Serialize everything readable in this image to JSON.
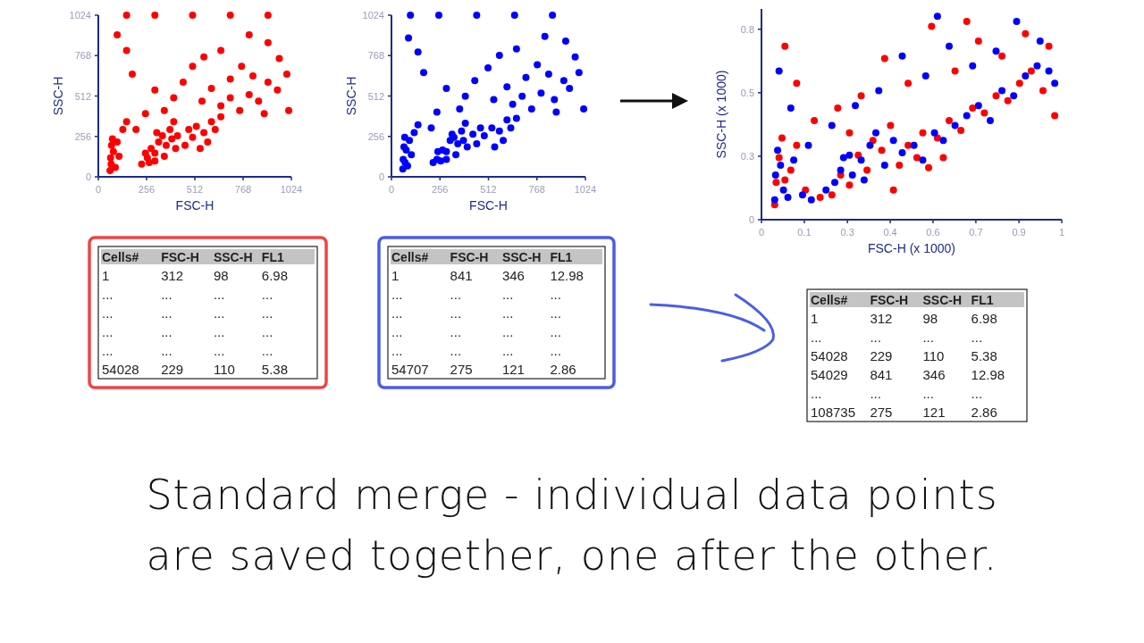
{
  "chart_data": [
    {
      "type": "scatter",
      "xlabel": "FSC-H",
      "ylabel": "SSC-H",
      "xlim": [
        0,
        1024
      ],
      "ylim": [
        0,
        1024
      ],
      "xticks": [
        0,
        256,
        512,
        768,
        1024
      ],
      "yticks": [
        0,
        256,
        512,
        768,
        1024
      ],
      "marker": "circle",
      "grid": false,
      "series": [
        {
          "color": "#ff0000",
          "x": [
            62,
            65,
            70,
            75,
            68,
            80,
            90,
            100,
            110,
            130,
            150,
            230,
            260,
            280,
            300,
            320,
            340,
            360,
            380,
            400,
            300,
            270,
            350,
            410,
            420,
            390,
            250,
            310,
            460,
            500,
            520,
            560,
            600,
            620,
            540,
            480,
            580,
            650,
            650,
            700,
            750,
            800,
            850,
            900,
            950,
            1000,
            1010,
            880,
            820,
            760,
            700,
            600,
            550,
            500,
            450,
            400,
            350,
            300,
            250,
            200,
            180,
            150,
            100,
            900,
            960,
            800,
            650,
            560,
            150,
            300,
            500,
            700,
            900
          ],
          "values": [
            40,
            120,
            200,
            240,
            80,
            160,
            60,
            220,
            130,
            300,
            350,
            80,
            120,
            180,
            150,
            220,
            260,
            200,
            300,
            350,
            100,
            90,
            130,
            180,
            260,
            240,
            150,
            280,
            200,
            250,
            320,
            280,
            350,
            300,
            180,
            300,
            220,
            380,
            450,
            500,
            420,
            520,
            480,
            600,
            550,
            650,
            420,
            400,
            640,
            700,
            620,
            560,
            480,
            700,
            600,
            500,
            420,
            550,
            400,
            300,
            650,
            800,
            900,
            850,
            750,
            900,
            800,
            760,
            1024,
            1024,
            1024,
            1024,
            1024
          ]
        }
      ]
    },
    {
      "type": "scatter",
      "xlabel": "FSC-H",
      "ylabel": "SSC-H",
      "xlim": [
        0,
        1024
      ],
      "ylim": [
        0,
        1024
      ],
      "xticks": [
        0,
        256,
        512,
        768,
        1024
      ],
      "yticks": [
        0,
        256,
        512,
        768,
        1024
      ],
      "marker": "circle",
      "grid": false,
      "series": [
        {
          "color": "#0000ff",
          "x": [
            60,
            62,
            66,
            70,
            72,
            78,
            85,
            95,
            105,
            120,
            140,
            220,
            240,
            270,
            290,
            310,
            330,
            350,
            370,
            390,
            290,
            260,
            340,
            400,
            430,
            380,
            245,
            320,
            450,
            490,
            530,
            570,
            610,
            630,
            545,
            470,
            590,
            660,
            640,
            690,
            740,
            790,
            860,
            910,
            940,
            990,
            1015,
            870,
            830,
            770,
            710,
            610,
            540,
            510,
            440,
            390,
            360,
            290,
            240,
            210,
            170,
            140,
            90,
            920,
            970,
            810,
            660,
            570,
            100,
            250,
            450,
            650,
            850
          ],
          "values": [
            50,
            110,
            190,
            250,
            90,
            170,
            70,
            230,
            140,
            280,
            330,
            90,
            110,
            170,
            160,
            230,
            250,
            210,
            290,
            340,
            110,
            100,
            140,
            190,
            270,
            230,
            160,
            270,
            210,
            260,
            310,
            290,
            360,
            310,
            190,
            310,
            230,
            370,
            460,
            510,
            430,
            530,
            490,
            610,
            560,
            660,
            430,
            410,
            650,
            710,
            630,
            570,
            490,
            690,
            610,
            510,
            430,
            560,
            410,
            310,
            660,
            790,
            880,
            860,
            760,
            890,
            810,
            770,
            1024,
            1024,
            1024,
            1024,
            1024
          ]
        }
      ]
    },
    {
      "type": "scatter",
      "xlabel": "FSC-H (x 1000)",
      "ylabel": "SSC-H (x 1000)",
      "xlim": [
        0,
        1.024
      ],
      "ylim": [
        0,
        0.85
      ],
      "xticks": [
        0,
        {
          "value": 0.146,
          "label": "0.1"
        },
        {
          "value": 0.293,
          "label": "0.3"
        },
        {
          "value": 0.439,
          "label": "0.4"
        },
        {
          "value": 0.585,
          "label": "0.6"
        },
        {
          "value": 0.731,
          "label": "0.7"
        },
        {
          "value": 0.878,
          "label": "0.9"
        },
        {
          "value": 1.024,
          "label": "1"
        }
      ],
      "yticks": [
        0,
        {
          "value": 0.256,
          "label": "0.3"
        },
        {
          "value": 0.512,
          "label": "0.5"
        },
        {
          "value": 0.768,
          "label": "0.8"
        }
      ],
      "marker": "circle",
      "grid": false,
      "series": [
        {
          "color": "#ff0000",
          "x": [
            0.045,
            0.05,
            0.06,
            0.07,
            0.08,
            0.1,
            0.12,
            0.15,
            0.2,
            0.24,
            0.27,
            0.3,
            0.33,
            0.36,
            0.38,
            0.41,
            0.44,
            0.47,
            0.5,
            0.53,
            0.57,
            0.6,
            0.64,
            0.68,
            0.72,
            0.76,
            0.8,
            0.84,
            0.88,
            0.92,
            0.96,
            1.0,
            0.98,
            0.9,
            0.82,
            0.74,
            0.66,
            0.58,
            0.5,
            0.42,
            0.34,
            0.26,
            0.18,
            0.12,
            0.08,
            0.3,
            0.45,
            0.55,
            0.62,
            0.7
          ],
          "values": [
            0.06,
            0.15,
            0.25,
            0.33,
            0.16,
            0.2,
            0.3,
            0.12,
            0.09,
            0.1,
            0.18,
            0.14,
            0.26,
            0.2,
            0.32,
            0.28,
            0.38,
            0.22,
            0.3,
            0.25,
            0.21,
            0.33,
            0.4,
            0.36,
            0.45,
            0.43,
            0.5,
            0.48,
            0.55,
            0.6,
            0.52,
            0.42,
            0.7,
            0.75,
            0.66,
            0.72,
            0.6,
            0.78,
            0.55,
            0.65,
            0.5,
            0.45,
            0.4,
            0.55,
            0.7,
            0.35,
            0.12,
            0.35,
            0.25,
            0.8
          ]
        },
        {
          "color": "#0000ff",
          "x": [
            0.045,
            0.048,
            0.055,
            0.065,
            0.075,
            0.09,
            0.11,
            0.14,
            0.17,
            0.22,
            0.25,
            0.28,
            0.31,
            0.34,
            0.37,
            0.39,
            0.42,
            0.45,
            0.48,
            0.52,
            0.55,
            0.59,
            0.62,
            0.66,
            0.7,
            0.74,
            0.78,
            0.82,
            0.86,
            0.9,
            0.94,
            0.98,
            1.0,
            0.95,
            0.87,
            0.8,
            0.72,
            0.64,
            0.56,
            0.48,
            0.4,
            0.32,
            0.24,
            0.16,
            0.1,
            0.06,
            0.35,
            0.3,
            0.27,
            0.6
          ],
          "values": [
            0.08,
            0.18,
            0.28,
            0.22,
            0.12,
            0.09,
            0.24,
            0.1,
            0.08,
            0.12,
            0.15,
            0.25,
            0.18,
            0.24,
            0.3,
            0.35,
            0.22,
            0.32,
            0.27,
            0.3,
            0.24,
            0.35,
            0.32,
            0.38,
            0.42,
            0.46,
            0.4,
            0.52,
            0.5,
            0.58,
            0.62,
            0.6,
            0.55,
            0.72,
            0.8,
            0.68,
            0.62,
            0.7,
            0.58,
            0.66,
            0.52,
            0.46,
            0.38,
            0.3,
            0.45,
            0.6,
            0.16,
            0.26,
            0.2,
            0.82
          ]
        }
      ]
    },
    {
      "type": "other",
      "color": "#ef4444",
      "categories": [
        "Cells#",
        "FSC-H",
        "SSC-H",
        "FL1"
      ],
      "cell_labels": [
        [
          "1",
          "312",
          "98",
          "6.98"
        ],
        [
          "...",
          "...",
          "...",
          "..."
        ],
        [
          "...",
          "...",
          "...",
          "..."
        ],
        [
          "...",
          "...",
          "...",
          "..."
        ],
        [
          "...",
          "...",
          "...",
          "..."
        ],
        [
          "54028",
          "229",
          "110",
          "5.38"
        ]
      ]
    },
    {
      "type": "other",
      "color": "#4a5de8",
      "categories": [
        "Cells#",
        "FSC-H",
        "SSC-H",
        "FL1"
      ],
      "cell_labels": [
        [
          "1",
          "841",
          "346",
          "12.98"
        ],
        [
          "...",
          "...",
          "...",
          "..."
        ],
        [
          "...",
          "...",
          "...",
          "..."
        ],
        [
          "...",
          "...",
          "...",
          "..."
        ],
        [
          "...",
          "...",
          "...",
          "..."
        ],
        [
          "54707",
          "275",
          "121",
          "2.86"
        ]
      ]
    },
    {
      "type": "other",
      "categories": [
        "Cells#",
        "FSC-H",
        "SSC-H",
        "FL1"
      ],
      "cell_labels": [
        [
          "1",
          "312",
          "98",
          "6.98"
        ],
        [
          "...",
          "...",
          "...",
          "..."
        ],
        [
          "54028",
          "229",
          "110",
          "5.38"
        ],
        [
          "54029",
          "841",
          "346",
          "12.98"
        ],
        [
          "...",
          "...",
          "...",
          "..."
        ],
        [
          "108735",
          "275",
          "121",
          "2.86"
        ]
      ]
    },
    {
      "type": "other",
      "annotations": [
        "Standard merge - individual data points are saved together, one after the other."
      ]
    }
  ]
}
